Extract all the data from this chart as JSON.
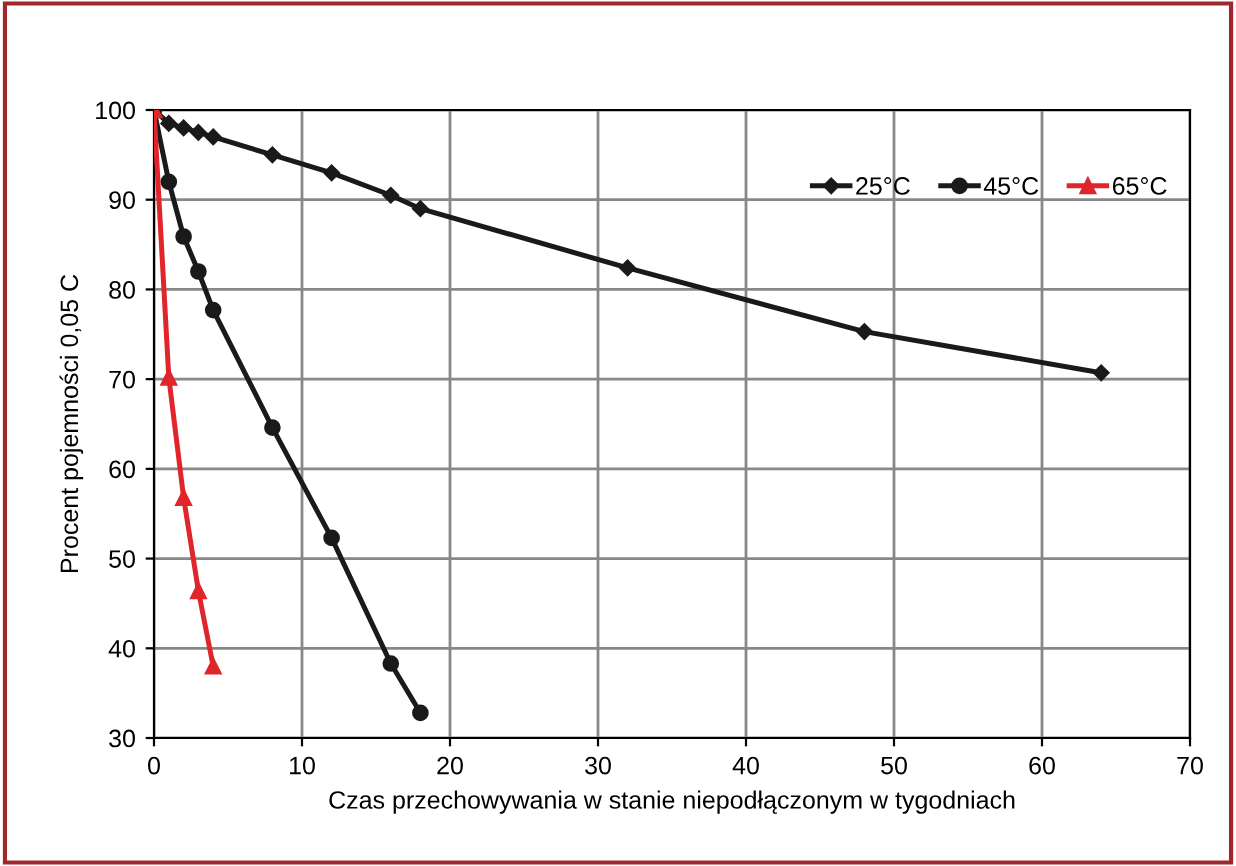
{
  "chart_data": {
    "type": "line",
    "xlabel": "Czas przechowywania w stanie niepodłączonym w tygodniach",
    "ylabel": "Procent pojemności 0,05 C",
    "xlim": [
      0,
      70
    ],
    "xticks": [
      0,
      10,
      20,
      30,
      40,
      50,
      60,
      70
    ],
    "ylim": [
      30,
      100
    ],
    "yticks": [
      30,
      40,
      50,
      60,
      70,
      80,
      90,
      100
    ],
    "grid": true,
    "legend": "top right",
    "series": [
      {
        "name": "25°C",
        "color": "#1a1a1a",
        "marker": "diamond",
        "x": [
          0,
          1,
          2,
          3,
          4,
          8,
          12,
          16,
          18,
          32,
          48,
          64
        ],
        "values": [
          100,
          98.5,
          98,
          97.5,
          97,
          95,
          93,
          90.5,
          89,
          82.4,
          75.3,
          70.7
        ]
      },
      {
        "name": "45°C",
        "color": "#1a1a1a",
        "marker": "circle",
        "x": [
          0,
          1,
          2,
          3,
          4,
          8,
          12,
          16,
          18
        ],
        "values": [
          100,
          92,
          85.9,
          82,
          77.7,
          64.6,
          52.3,
          38.3,
          32.8
        ]
      },
      {
        "name": "65°C",
        "color": "#e0262b",
        "marker": "triangle",
        "x": [
          0,
          1,
          2,
          3,
          4
        ],
        "values": [
          100,
          70.2,
          56.8,
          46.4,
          38
        ]
      }
    ]
  }
}
